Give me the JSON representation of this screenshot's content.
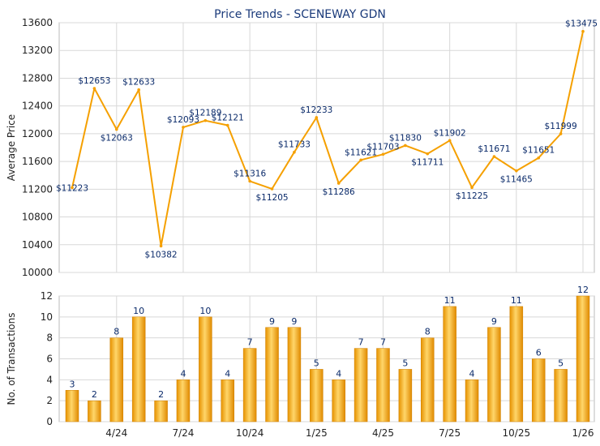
{
  "chart_data": [
    {
      "type": "line",
      "title": "Price Trends - SCENEWAY GDN",
      "ylabel": "Average Price",
      "ylim": [
        10000,
        13600
      ],
      "yticks": [
        10000,
        10400,
        10800,
        11200,
        11600,
        12000,
        12400,
        12800,
        13200,
        13600
      ],
      "point_labels": [
        "$11223",
        "$12653",
        "$12063",
        "$12633",
        "$10382",
        "$12093",
        "$12189",
        "$12121",
        "$11316",
        "$11205",
        "$11733",
        "$12233",
        "$11286",
        "$11621",
        "$11703",
        "$11830",
        "$11711",
        "$11902",
        "$11225",
        "$11671",
        "$11465",
        "$11651",
        "$11999",
        "$13475"
      ],
      "values": [
        11223,
        12653,
        12063,
        12633,
        10382,
        12093,
        12189,
        12121,
        11316,
        11205,
        11733,
        12233,
        11286,
        11621,
        11703,
        11830,
        11711,
        11902,
        11225,
        11671,
        11465,
        11651,
        11999,
        13475
      ],
      "line_color": "#f5a000",
      "grid": true
    },
    {
      "type": "bar",
      "ylabel": "No. of Transactions",
      "ylim": [
        0,
        12
      ],
      "yticks": [
        0,
        2,
        4,
        6,
        8,
        10,
        12
      ],
      "values": [
        3,
        2,
        8,
        10,
        2,
        4,
        10,
        4,
        7,
        9,
        9,
        5,
        4,
        7,
        7,
        5,
        8,
        11,
        4,
        9,
        11,
        6,
        5,
        12
      ],
      "bar_color": "#f5a800",
      "xticks": [
        {
          "index": 2,
          "label": "4/24"
        },
        {
          "index": 5,
          "label": "7/24"
        },
        {
          "index": 8,
          "label": "10/24"
        },
        {
          "index": 11,
          "label": "1/25"
        },
        {
          "index": 14,
          "label": "4/25"
        },
        {
          "index": 17,
          "label": "7/25"
        },
        {
          "index": 20,
          "label": "10/25"
        },
        {
          "index": 23,
          "label": "1/26"
        }
      ],
      "grid": true
    }
  ]
}
